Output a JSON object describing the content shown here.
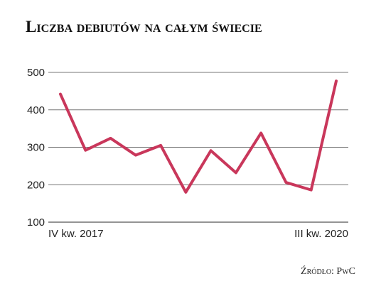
{
  "chart_data": {
    "type": "line",
    "title": "Liczba debiutów na całym świecie",
    "source": "Źródło: PwC",
    "categories": [
      "IV kw. 2017",
      null,
      null,
      null,
      null,
      null,
      null,
      null,
      null,
      null,
      null,
      "III kw. 2020"
    ],
    "values": [
      442,
      292,
      324,
      279,
      305,
      180,
      291,
      232,
      338,
      206,
      186,
      477
    ],
    "color": "#c9375b",
    "ylim": [
      100,
      500
    ],
    "yticks": [
      100,
      200,
      300,
      400,
      500
    ],
    "grid": true
  }
}
